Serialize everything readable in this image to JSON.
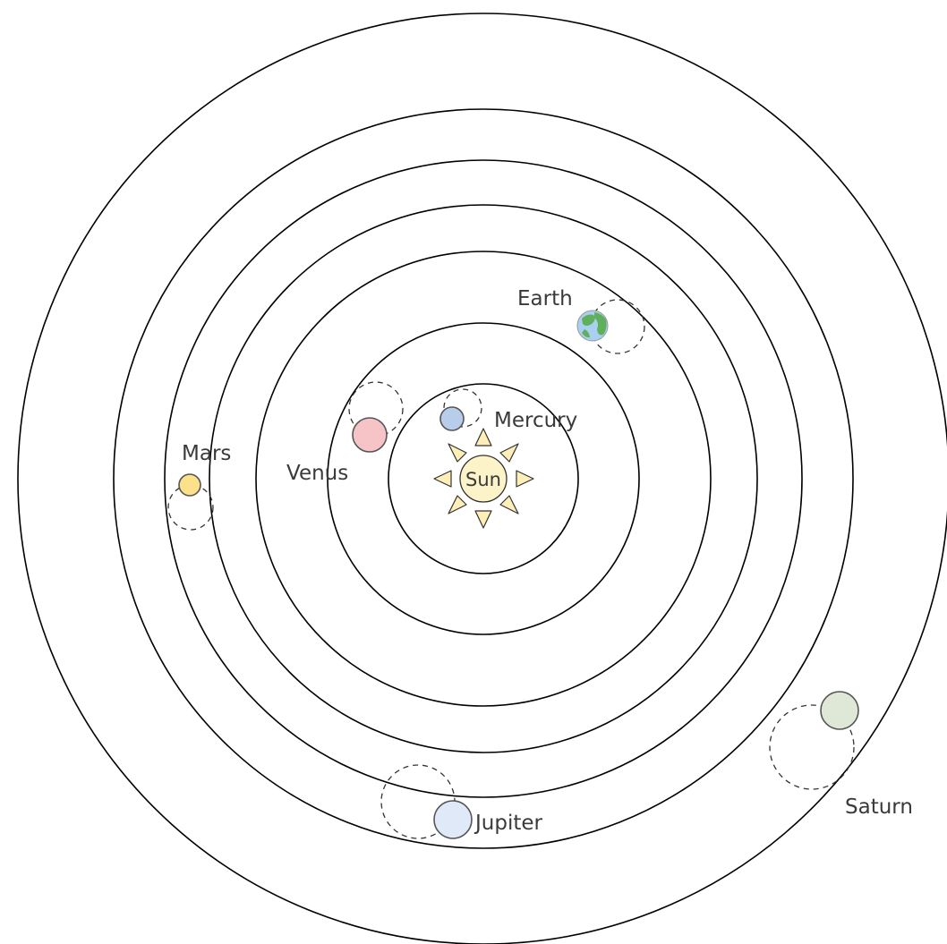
{
  "labels": {
    "sun": "Sun",
    "mercury": "Mercury",
    "venus": "Venus",
    "earth": "Earth",
    "mars": "Mars",
    "jupiter": "Jupiter",
    "saturn": "Saturn"
  },
  "colors": {
    "orbit": "#000000",
    "sun": "#fdf3c8",
    "sun_ray": "#fdefb7",
    "mercury": "#b8cde9",
    "venus": "#f6c3c7",
    "earth_water": "#a9d0f0",
    "earth_land": "#5fb05a",
    "mars": "#fde08a",
    "jupiter": "#dfe9f8",
    "saturn": "#dfe8d6"
  },
  "icons": {
    "sun": "sun-icon",
    "earth": "globe-icon"
  }
}
